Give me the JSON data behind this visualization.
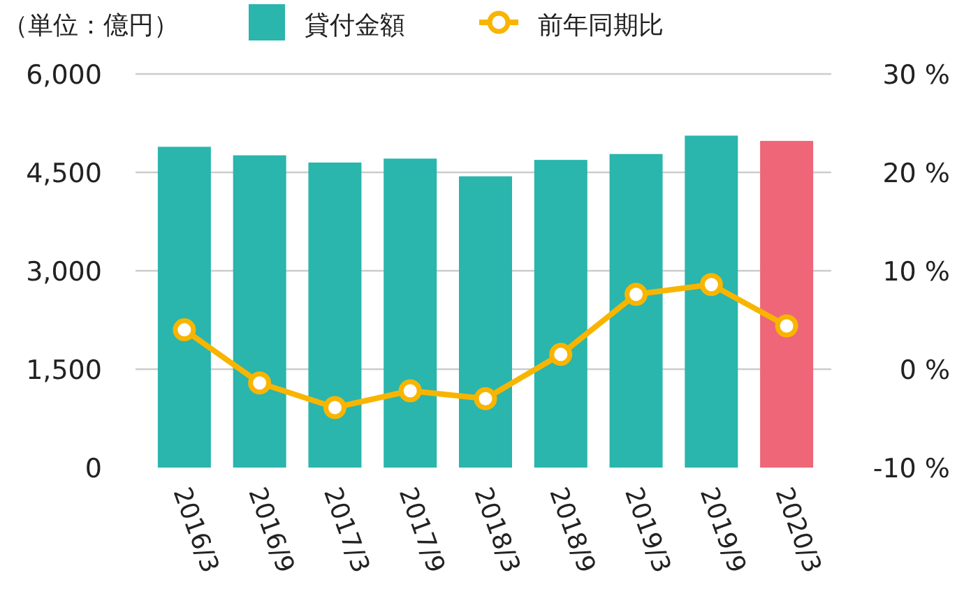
{
  "chart_data": {
    "type": "bar",
    "ylabel": "（単位：億円）",
    "categories": [
      "2016/3",
      "2016/9",
      "2017/3",
      "2017/9",
      "2018/3",
      "2018/9",
      "2019/3",
      "2019/9",
      "2020/3"
    ],
    "series": [
      {
        "name": "貸付金額",
        "color": "#2ab5ad",
        "colors": [
          "#2ab5ad",
          "#2ab5ad",
          "#2ab5ad",
          "#2ab5ad",
          "#2ab5ad",
          "#2ab5ad",
          "#2ab5ad",
          "#2ab5ad",
          "#ee6677"
        ],
        "values": [
          4890,
          4760,
          4650,
          4710,
          4440,
          4690,
          4780,
          5060,
          4980
        ]
      },
      {
        "name": "前年同期比",
        "type": "line",
        "axis": "y2",
        "color": "#f8b500",
        "values": [
          4.0,
          -1.4,
          -3.9,
          -2.2,
          -3.0,
          1.5,
          7.6,
          8.6,
          4.4
        ]
      }
    ],
    "ylim": [
      0,
      6000
    ],
    "yticks": [
      0,
      {
        "value": 1500,
        "label": "1,500"
      },
      {
        "value": 3000,
        "label": "3,000"
      },
      {
        "value": 4500,
        "label": "4,500"
      },
      {
        "value": 6000,
        "label": "6,000"
      }
    ],
    "y2lim": [
      -10,
      30
    ],
    "y2ticks": [
      {
        "value": -10,
        "label": "-10 %"
      },
      {
        "value": 0,
        "label": "0 %"
      },
      {
        "value": 10,
        "label": "10 %"
      },
      {
        "value": 20,
        "label": "20 %"
      },
      {
        "value": 30,
        "label": "30 %"
      }
    ],
    "grid": "y",
    "legend": "top",
    "marker": "circle"
  }
}
